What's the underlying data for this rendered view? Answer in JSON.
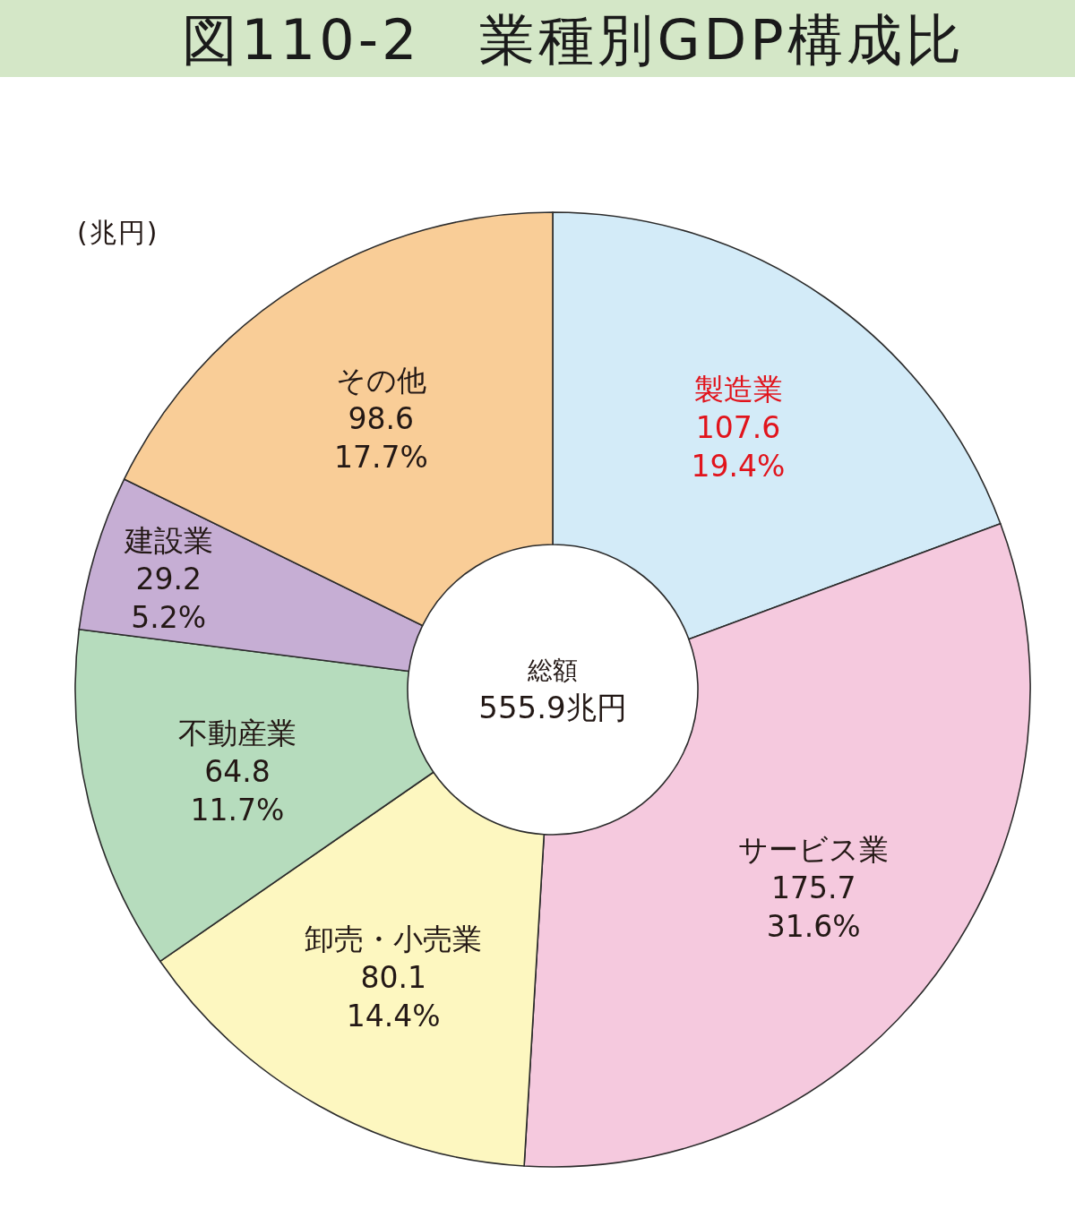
{
  "chart_data": {
    "type": "donut",
    "title": "図110-2　業種別GDP構成比",
    "categories": [
      "製造業",
      "サービス業",
      "卸売・小売業",
      "不動産業",
      "建設業",
      "その他"
    ],
    "values": [
      107.6,
      175.7,
      80.1,
      64.8,
      29.2,
      98.6
    ],
    "value_labels": [
      "107.6\n19.4%",
      "175.7\n31.6%",
      "80.1\n14.4%",
      "64.8\n11.7%",
      "29.2\n5.2%",
      "98.6\n17.7%"
    ],
    "colors": [
      "#d3ebf8",
      "#f5c9de",
      "#fdf7c0",
      "#b6dcbd",
      "#c6aed4",
      "#f9cd97"
    ],
    "annotations": [
      "(兆円)",
      "総額",
      "555.9兆円"
    ]
  }
}
